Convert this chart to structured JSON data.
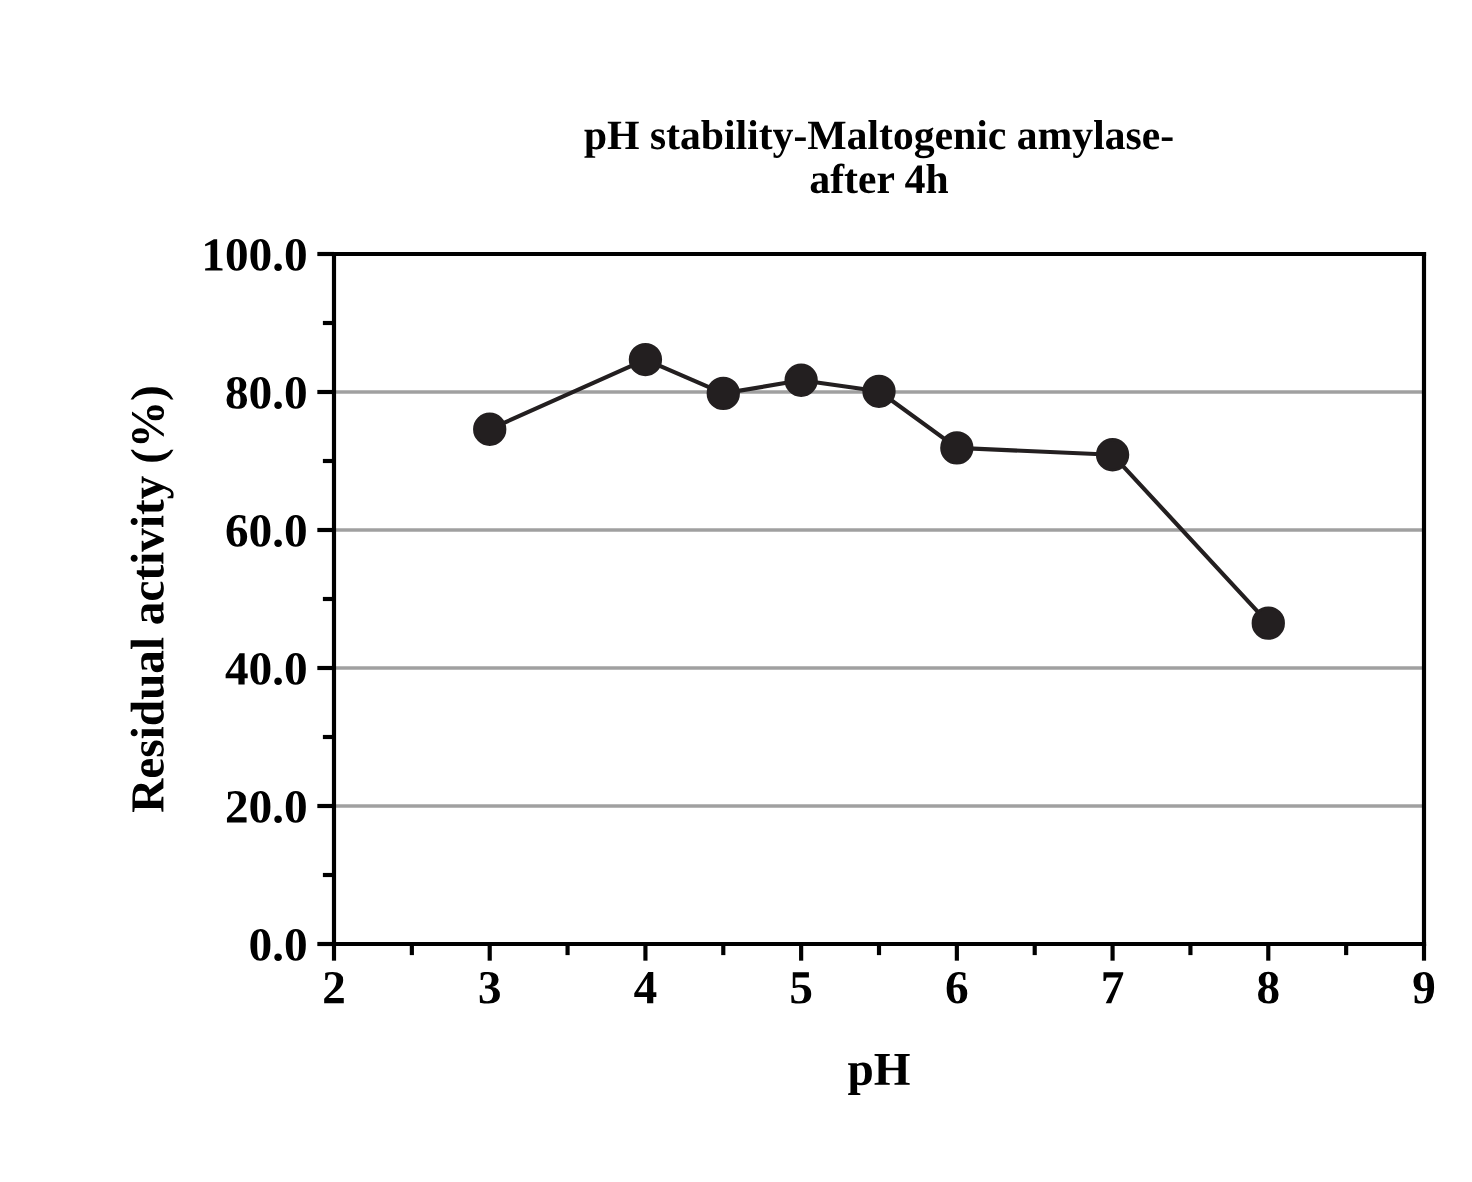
{
  "chart_data": {
    "type": "line",
    "title": "pH stability-Maltogenic amylase-\nafter 4h",
    "xlabel": "pH",
    "ylabel": "Residual activity (%)",
    "x": [
      3,
      4,
      4.5,
      5,
      5.5,
      6,
      7,
      8
    ],
    "series": [
      {
        "color": "#231f20",
        "values": [
          74.6,
          84.7,
          79.8,
          81.7,
          80.1,
          71.9,
          70.9,
          46.5
        ]
      }
    ],
    "xlim": [
      2,
      9
    ],
    "ylim": [
      0,
      100
    ],
    "xticks": [
      2,
      {
        "value": 2.5,
        "label": null
      },
      3,
      {
        "value": 3.5,
        "label": null
      },
      4,
      {
        "value": 4.5,
        "label": null
      },
      5,
      {
        "value": 5.5,
        "label": null
      },
      6,
      {
        "value": 6.5,
        "label": null
      },
      7,
      {
        "value": 7.5,
        "label": null
      },
      8,
      {
        "value": 8.5,
        "label": null
      },
      9
    ],
    "yticks": [
      {
        "value": 0,
        "label": "0.0"
      },
      {
        "value": 10,
        "label": null
      },
      {
        "value": 20,
        "label": "20.0"
      },
      {
        "value": 30,
        "label": null
      },
      {
        "value": 40,
        "label": "40.0"
      },
      {
        "value": 50,
        "label": null
      },
      {
        "value": 60,
        "label": "60.0"
      },
      {
        "value": 70,
        "label": null
      },
      {
        "value": 80,
        "label": "80.0"
      },
      {
        "value": 90,
        "label": null
      },
      {
        "value": 100,
        "label": "100.0"
      }
    ],
    "grid": "y",
    "marker": "circle",
    "line_style": "solid",
    "legend": false
  }
}
